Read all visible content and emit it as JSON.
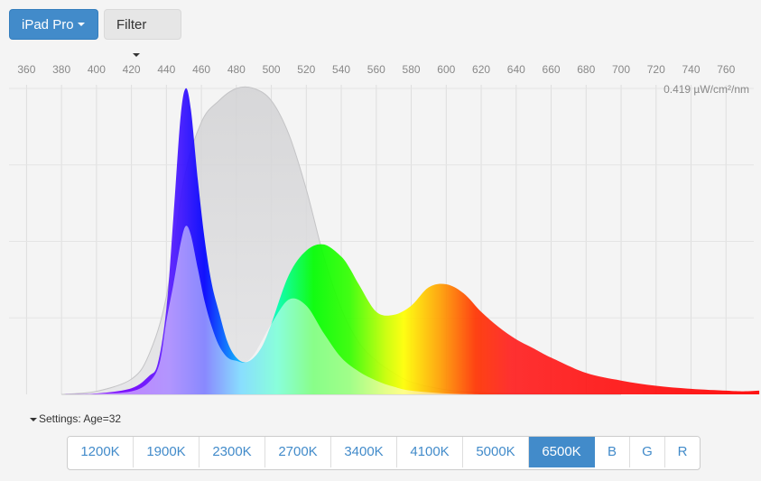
{
  "toolbar": {
    "device_label": "iPad Pro",
    "filter_label": "Filter"
  },
  "settings": {
    "label": "Settings: Age=32"
  },
  "kelvin_buttons": [
    "1200K",
    "1900K",
    "2300K",
    "2700K",
    "3400K",
    "4100K",
    "5000K",
    "6500K",
    "B",
    "G",
    "R"
  ],
  "kelvin_active": "6500K",
  "chart_data": {
    "type": "area",
    "unit_label": "0.419 µW/cm²/nm",
    "xlim": [
      350,
      780
    ],
    "ylim": [
      0,
      1
    ],
    "x_ticks": [
      360,
      380,
      400,
      420,
      440,
      460,
      480,
      500,
      520,
      540,
      560,
      580,
      600,
      620,
      640,
      660,
      680,
      700,
      720,
      740,
      760
    ],
    "grid": true,
    "series": [
      {
        "x": [
          380,
          400,
          420,
          430,
          440,
          450,
          460,
          470,
          480,
          490,
          500,
          510,
          520,
          530,
          540,
          550,
          560,
          570,
          580,
          600,
          620,
          640,
          660,
          680,
          700
        ],
        "y": [
          0.0,
          0.01,
          0.05,
          0.13,
          0.32,
          0.7,
          0.89,
          0.96,
          1.0,
          1.0,
          0.96,
          0.85,
          0.67,
          0.45,
          0.28,
          0.17,
          0.11,
          0.07,
          0.04,
          0.015,
          0.006,
          0.003,
          0.002,
          0.001,
          0.0
        ]
      },
      {
        "x": [
          380,
          400,
          420,
          430,
          435,
          440,
          444,
          448,
          451,
          454,
          458,
          462,
          466,
          470,
          475,
          480,
          485,
          490,
          495,
          500,
          510,
          520,
          530,
          540,
          545,
          550,
          560,
          570,
          580,
          590,
          600,
          610,
          620,
          630,
          640,
          650,
          660,
          680,
          700,
          720,
          740,
          760,
          770,
          779
        ],
        "y": [
          0.0,
          0.003,
          0.02,
          0.06,
          0.1,
          0.28,
          0.58,
          0.9,
          1.0,
          0.93,
          0.7,
          0.5,
          0.36,
          0.27,
          0.17,
          0.12,
          0.105,
          0.12,
          0.16,
          0.23,
          0.39,
          0.47,
          0.49,
          0.45,
          0.41,
          0.36,
          0.27,
          0.26,
          0.29,
          0.35,
          0.36,
          0.33,
          0.27,
          0.22,
          0.18,
          0.15,
          0.12,
          0.07,
          0.045,
          0.028,
          0.018,
          0.012,
          0.01,
          0.012
        ]
      },
      {
        "x": [
          380,
          400,
          420,
          430,
          436,
          440,
          444,
          448,
          451,
          454,
          458,
          462,
          466,
          470,
          475,
          480,
          485,
          490,
          495,
          500,
          510,
          520,
          530,
          540,
          550,
          560,
          570,
          580,
          600,
          620
        ],
        "y": [
          0.0,
          0.002,
          0.01,
          0.04,
          0.1,
          0.24,
          0.36,
          0.49,
          0.55,
          0.52,
          0.41,
          0.3,
          0.22,
          0.16,
          0.12,
          0.11,
          0.105,
          0.13,
          0.18,
          0.23,
          0.31,
          0.29,
          0.2,
          0.12,
          0.075,
          0.045,
          0.025,
          0.012,
          0.003,
          0.0
        ]
      }
    ]
  }
}
